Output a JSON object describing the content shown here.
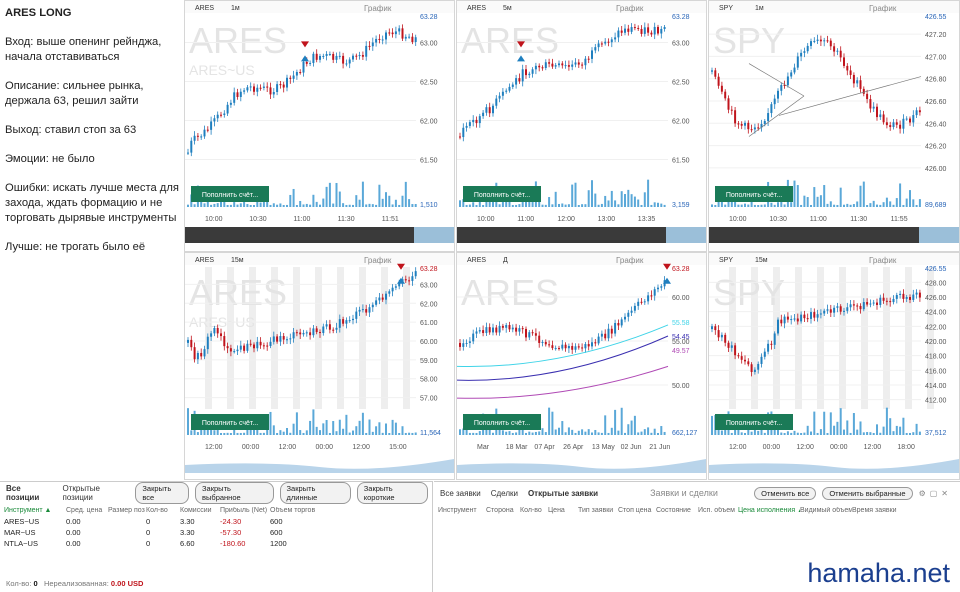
{
  "notes": {
    "title": "ARES LONG",
    "entry": "Вход: выше опенинг рейнджа, начала отставиваться",
    "description": "Описание: сильнее рынка, держала 63, решил зайти",
    "exit": "Выход: ставил стоп за 63",
    "emotions": "Эмоции: не было",
    "mistakes": "Ошибки: искать лучше места для захода, ждать формацию и не торговать дырявые инструменты",
    "better": "Лучше: не трогать было её"
  },
  "colors": {
    "up": "#1f7fbf",
    "down": "#c0141c",
    "volume": "#5aa8d8",
    "deposit_btn": "#1a7a57",
    "ma1": "#40d4e8",
    "ma2": "#3a2fb0",
    "ma3": "#b04ab5"
  },
  "charts": [
    {
      "symbol": "ARES",
      "timeframe": "1м",
      "panel_label": "График",
      "watermark": "ARES",
      "watermark_sub": "ARES~US",
      "price_labels": [
        "63.00",
        "62.50",
        "62.00",
        "61.50"
      ],
      "last_price": "63.28",
      "time_labels": [
        "10:00",
        "10:30",
        "11:00",
        "11:30",
        "11:51"
      ],
      "volume_label": "1,510",
      "deposit_button": "Пополнить счёт..."
    },
    {
      "symbol": "ARES",
      "timeframe": "5м",
      "panel_label": "График",
      "watermark": "ARES",
      "watermark_sub": "",
      "price_labels": [
        "63.00",
        "62.50",
        "62.00",
        "61.50"
      ],
      "last_price": "63.28",
      "time_labels": [
        "10:00",
        "11:00",
        "12:00",
        "13:00",
        "13:35"
      ],
      "volume_label": "3,159",
      "deposit_button": "Пополнить счёт..."
    },
    {
      "symbol": "SPY",
      "timeframe": "1м",
      "panel_label": "График",
      "watermark": "SPY",
      "watermark_sub": "",
      "price_labels": [
        "427.20",
        "427.00",
        "426.80",
        "426.60",
        "426.40",
        "426.20",
        "426.00"
      ],
      "last_price": "426.55",
      "time_labels": [
        "10:00",
        "10:30",
        "11:00",
        "11:30",
        "11:55"
      ],
      "volume_label": "89,689",
      "deposit_button": "Пополнить счёт..."
    },
    {
      "symbol": "ARES",
      "timeframe": "15м",
      "panel_label": "График",
      "watermark": "ARES",
      "watermark_sub": "ARES~US",
      "price_labels": [
        "63.00",
        "62.00",
        "61.00",
        "60.00",
        "59.00",
        "58.00",
        "57.00"
      ],
      "last_price": "63.28",
      "time_labels": [
        "12:00",
        "00:00",
        "12:00",
        "00:00",
        "12:00",
        "15:00"
      ],
      "volume_label": "11,564",
      "deposit_button": "Пополнить счёт..."
    },
    {
      "symbol": "ARES",
      "timeframe": "Д",
      "panel_label": "График",
      "watermark": "ARES",
      "watermark_sub": "",
      "price_labels": [
        "60.00",
        "55.00",
        "50.00"
      ],
      "extra_labels": [
        "55.58",
        "54.45",
        "49.57"
      ],
      "last_price": "63.28",
      "time_labels": [
        "Mar",
        "18 Mar",
        "07 Apr",
        "26 Apr",
        "13 May",
        "02 Jun",
        "21 Jun"
      ],
      "volume_label": "662,127",
      "deposit_button": "Пополнить счёт..."
    },
    {
      "symbol": "SPY",
      "timeframe": "15м",
      "panel_label": "График",
      "watermark": "SPY",
      "watermark_sub": "",
      "price_labels": [
        "428.00",
        "426.00",
        "424.00",
        "422.00",
        "420.00",
        "418.00",
        "416.00",
        "414.00",
        "412.00"
      ],
      "last_price": "426.55",
      "time_labels": [
        "12:00",
        "00:00",
        "12:00",
        "00:00",
        "12:00",
        "18:00"
      ],
      "volume_label": "37,512",
      "deposit_button": "Пополнить счёт..."
    }
  ],
  "positions": {
    "tabs": [
      "Все позиции",
      "Открытые позиции"
    ],
    "buttons": [
      "Закрыть все",
      "Закрыть выбранное",
      "Закрыть длинные",
      "Закрыть короткие"
    ],
    "headers": [
      "Инструмент ▲",
      "Сред. цена",
      "Размер поз",
      "Кол-во",
      "Комиссии",
      "Прибыль (Net)",
      "Объем торгов"
    ],
    "rows": [
      [
        "ARES~US",
        "0.00",
        "",
        "0",
        "3.30",
        "-24.30",
        "600"
      ],
      [
        "MAR~US",
        "0.00",
        "",
        "0",
        "3.30",
        "-57.30",
        "600"
      ],
      [
        "NTLA~US",
        "0.00",
        "",
        "0",
        "6.60",
        "-180.60",
        "1200"
      ]
    ],
    "footer_qty_label": "Кол-во:",
    "footer_qty": "0",
    "footer_unrealized_label": "Нереализованная:",
    "footer_unrealized": "0.00 USD"
  },
  "orders": {
    "tabs": [
      "Все заявки",
      "Сделки",
      "Открытые заявки"
    ],
    "panel_title": "Заявки и сделки",
    "buttons": [
      "Отменить все",
      "Отменить выбранные"
    ],
    "headers": [
      "Инструмент",
      "Сторона",
      "Кол-во",
      "Цена",
      "Тип заявки",
      "Стоп цена",
      "Состояние",
      "Исп. объем",
      "Цена исполнения ▲",
      "Видимый объем",
      "Время заявки"
    ]
  },
  "site": "hamaha.net"
}
